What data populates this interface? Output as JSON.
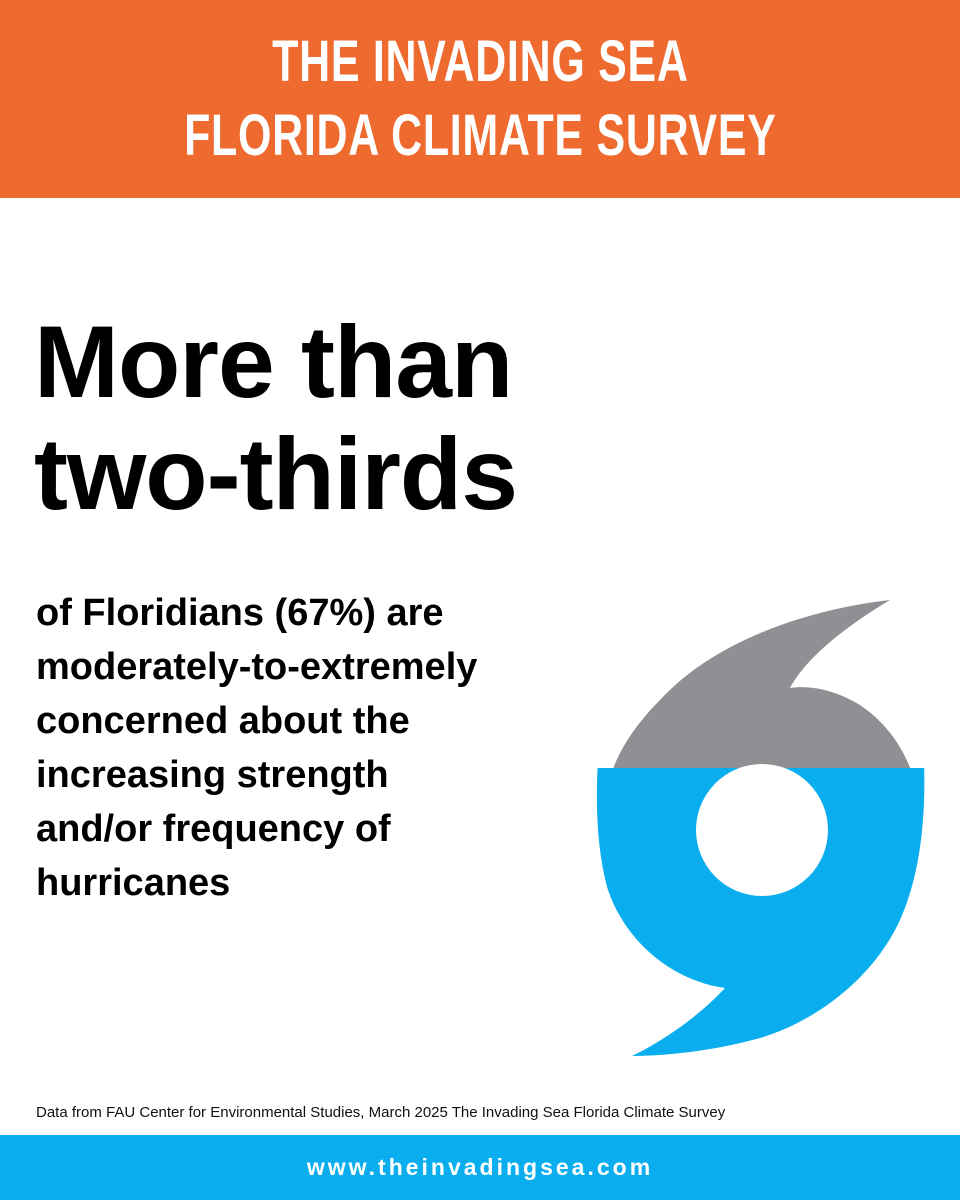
{
  "header": {
    "line1": "THE INVADING SEA",
    "line2": "FLORIDA CLIMATE SURVEY",
    "color": "#ef6a2e"
  },
  "headline": {
    "line1": "More than",
    "line2": "two-thirds"
  },
  "body": {
    "lines": [
      "of Floridians (67%) are",
      "moderately-to-extremely",
      "concerned about the",
      "increasing strength",
      "and/or frequency of",
      "hurricanes"
    ]
  },
  "graphic": {
    "icon": "hurricane-icon",
    "top_color": "#8e9093",
    "bottom_color": "#0aaeee",
    "fill_fraction": 0.67
  },
  "source": {
    "text": "Data from FAU Center for Environmental Studies, March 2025 The Invading Sea Florida Climate Survey"
  },
  "footer": {
    "url": "www.theinvadingsea.com",
    "color": "#0aaeee"
  }
}
